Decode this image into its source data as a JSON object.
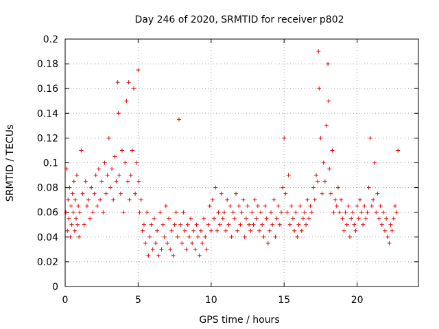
{
  "chart_data": {
    "type": "scatter",
    "title": "Day 246 of 2020, SRMTID for receiver p802",
    "xlabel": "GPS time / hours",
    "ylabel": "SRMTID / TECUs",
    "xlim": [
      0,
      24.2
    ],
    "ylim": [
      0,
      0.2
    ],
    "xticks": [
      0,
      5,
      10,
      15,
      20
    ],
    "xtick_labels": [
      "0",
      "5",
      "10",
      "15",
      "20"
    ],
    "yticks": [
      0,
      0.02,
      0.04,
      0.06,
      0.08,
      0.1,
      0.12,
      0.14,
      0.16,
      0.18,
      0.2
    ],
    "ytick_labels": [
      "0",
      "0.02",
      "0.04",
      "0.06",
      "0.08",
      "0.1",
      "0.12",
      "0.14",
      "0.16",
      "0.18",
      "0.2"
    ],
    "grid": true,
    "marker": "plus",
    "series": [
      {
        "name": "SRMTID",
        "color": "#e00000",
        "x": [
          0.05,
          0.1,
          0.15,
          0.2,
          0.25,
          0.3,
          0.35,
          0.4,
          0.45,
          0.5,
          0.55,
          0.6,
          0.65,
          0.7,
          0.75,
          0.8,
          0.85,
          0.9,
          0.95,
          1.0,
          1.1,
          1.2,
          1.3,
          1.4,
          1.5,
          1.6,
          1.7,
          1.8,
          1.9,
          2.0,
          2.1,
          2.2,
          2.3,
          2.4,
          2.5,
          2.6,
          2.7,
          2.8,
          2.9,
          3.0,
          3.1,
          3.2,
          3.3,
          3.4,
          3.5,
          3.6,
          3.65,
          3.7,
          3.8,
          3.9,
          4.0,
          4.1,
          4.2,
          4.3,
          4.35,
          4.4,
          4.5,
          4.6,
          4.7,
          4.8,
          4.9,
          5.0,
          5.05,
          5.1,
          5.2,
          5.3,
          5.4,
          5.5,
          5.6,
          5.7,
          5.8,
          5.9,
          6.0,
          6.1,
          6.2,
          6.3,
          6.4,
          6.5,
          6.6,
          6.7,
          6.8,
          6.9,
          7.0,
          7.1,
          7.2,
          7.3,
          7.4,
          7.5,
          7.6,
          7.7,
          7.8,
          7.9,
          8.0,
          8.1,
          8.2,
          8.3,
          8.4,
          8.5,
          8.6,
          8.7,
          8.8,
          8.9,
          9.0,
          9.1,
          9.2,
          9.3,
          9.4,
          9.5,
          9.6,
          9.7,
          9.8,
          9.9,
          10.0,
          10.1,
          10.2,
          10.3,
          10.4,
          10.5,
          10.6,
          10.7,
          10.8,
          10.9,
          11.0,
          11.1,
          11.2,
          11.3,
          11.4,
          11.5,
          11.6,
          11.7,
          11.8,
          11.9,
          12.0,
          12.1,
          12.2,
          12.3,
          12.4,
          12.5,
          12.6,
          12.7,
          12.8,
          12.9,
          13.0,
          13.1,
          13.2,
          13.3,
          13.4,
          13.5,
          13.6,
          13.7,
          13.8,
          13.9,
          14.0,
          14.1,
          14.2,
          14.3,
          14.4,
          14.5,
          14.6,
          14.7,
          14.8,
          14.9,
          15.0,
          15.1,
          15.2,
          15.3,
          15.4,
          15.5,
          15.6,
          15.7,
          15.8,
          15.9,
          16.0,
          16.1,
          16.2,
          16.3,
          16.4,
          16.5,
          16.6,
          16.7,
          16.8,
          16.9,
          17.0,
          17.1,
          17.2,
          17.3,
          17.35,
          17.4,
          17.5,
          17.6,
          17.7,
          17.8,
          17.9,
          18.0,
          18.05,
          18.1,
          18.2,
          18.3,
          18.4,
          18.5,
          18.6,
          18.7,
          18.8,
          18.9,
          19.0,
          19.1,
          19.2,
          19.3,
          19.4,
          19.5,
          19.6,
          19.7,
          19.8,
          19.9,
          20.0,
          20.1,
          20.2,
          20.3,
          20.4,
          20.5,
          20.6,
          20.7,
          20.8,
          20.9,
          21.0,
          21.1,
          21.2,
          21.3,
          21.4,
          21.5,
          21.6,
          21.7,
          21.8,
          21.9,
          22.0,
          22.1,
          22.2,
          22.3,
          22.4,
          22.5,
          22.6,
          22.7,
          22.8
        ],
        "y": [
          0.06,
          0.095,
          0.045,
          0.07,
          0.055,
          0.08,
          0.04,
          0.065,
          0.05,
          0.075,
          0.06,
          0.085,
          0.045,
          0.07,
          0.055,
          0.09,
          0.05,
          0.065,
          0.04,
          0.06,
          0.11,
          0.075,
          0.05,
          0.085,
          0.065,
          0.07,
          0.055,
          0.08,
          0.06,
          0.075,
          0.09,
          0.065,
          0.095,
          0.07,
          0.085,
          0.06,
          0.1,
          0.075,
          0.09,
          0.12,
          0.08,
          0.095,
          0.07,
          0.105,
          0.085,
          0.165,
          0.14,
          0.09,
          0.075,
          0.11,
          0.06,
          0.1,
          0.15,
          0.085,
          0.165,
          0.07,
          0.09,
          0.11,
          0.16,
          0.075,
          0.1,
          0.175,
          0.085,
          0.06,
          0.07,
          0.045,
          0.05,
          0.035,
          0.06,
          0.025,
          0.04,
          0.05,
          0.03,
          0.055,
          0.035,
          0.045,
          0.025,
          0.06,
          0.03,
          0.05,
          0.04,
          0.065,
          0.035,
          0.055,
          0.03,
          0.045,
          0.025,
          0.05,
          0.06,
          0.04,
          0.135,
          0.05,
          0.035,
          0.06,
          0.045,
          0.03,
          0.05,
          0.04,
          0.055,
          0.035,
          0.045,
          0.03,
          0.05,
          0.04,
          0.025,
          0.045,
          0.035,
          0.055,
          0.04,
          0.03,
          0.05,
          0.065,
          0.045,
          0.07,
          0.055,
          0.08,
          0.045,
          0.06,
          0.05,
          0.075,
          0.055,
          0.06,
          0.045,
          0.07,
          0.05,
          0.065,
          0.04,
          0.06,
          0.055,
          0.075,
          0.045,
          0.065,
          0.05,
          0.06,
          0.07,
          0.04,
          0.055,
          0.065,
          0.05,
          0.045,
          0.06,
          0.05,
          0.07,
          0.055,
          0.065,
          0.045,
          0.06,
          0.05,
          0.04,
          0.065,
          0.055,
          0.035,
          0.045,
          0.06,
          0.05,
          0.07,
          0.04,
          0.055,
          0.065,
          0.05,
          0.06,
          0.08,
          0.12,
          0.075,
          0.06,
          0.09,
          0.05,
          0.065,
          0.055,
          0.045,
          0.06,
          0.04,
          0.05,
          0.065,
          0.045,
          0.055,
          0.06,
          0.05,
          0.07,
          0.055,
          0.065,
          0.06,
          0.08,
          0.07,
          0.09,
          0.085,
          0.19,
          0.16,
          0.12,
          0.075,
          0.1,
          0.085,
          0.13,
          0.18,
          0.15,
          0.095,
          0.075,
          0.11,
          0.06,
          0.07,
          0.065,
          0.08,
          0.06,
          0.07,
          0.055,
          0.045,
          0.06,
          0.05,
          0.065,
          0.04,
          0.055,
          0.06,
          0.05,
          0.045,
          0.065,
          0.055,
          0.07,
          0.06,
          0.05,
          0.065,
          0.055,
          0.06,
          0.08,
          0.12,
          0.065,
          0.07,
          0.1,
          0.06,
          0.075,
          0.055,
          0.065,
          0.05,
          0.06,
          0.045,
          0.055,
          0.04,
          0.035,
          0.05,
          0.045,
          0.055,
          0.065,
          0.06,
          0.11
        ]
      }
    ]
  }
}
